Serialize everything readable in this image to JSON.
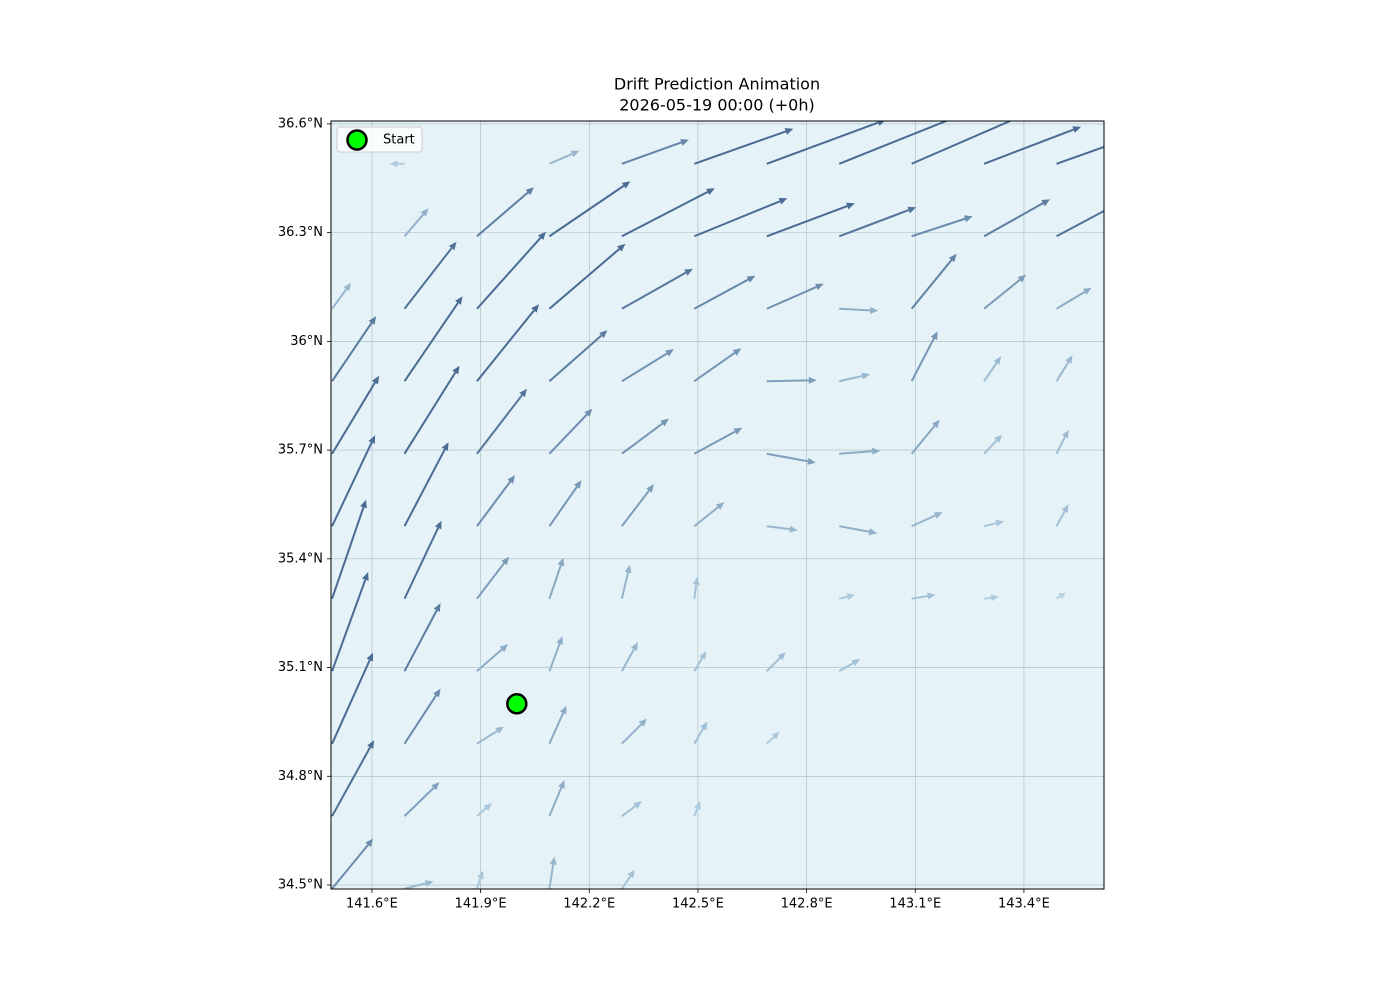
{
  "chart_data": {
    "type": "quiver",
    "title": "Drift Prediction Animation",
    "subtitle": "2026-05-19 00:00 (+0h)",
    "x": [
      141.49,
      141.69,
      141.89,
      142.09,
      142.29,
      142.49,
      142.69,
      142.89,
      143.09,
      143.29,
      143.49
    ],
    "y": [
      34.49,
      34.69,
      34.89,
      35.09,
      35.29,
      35.49,
      35.69,
      35.89,
      36.09,
      36.29,
      36.49
    ],
    "u": [
      [
        0.41,
        0.29,
        0.06,
        0.05,
        0.13,
        0,
        0,
        0,
        0,
        0,
        0
      ],
      [
        0.42,
        0.35,
        0.15,
        0.15,
        0.2,
        0.06,
        0,
        0,
        0,
        0,
        0
      ],
      [
        0.41,
        0.36,
        0.27,
        0.17,
        0.25,
        0.13,
        0.13,
        0,
        0,
        0,
        0
      ],
      [
        0.36,
        0.36,
        0.31,
        0.13,
        0.16,
        0.12,
        0.19,
        0.21,
        0,
        0,
        0
      ],
      [
        0.34,
        0.37,
        0.32,
        0.14,
        0.08,
        0.03,
        0,
        0.16,
        0.24,
        0.15,
        0.09
      ],
      [
        0.43,
        0.44,
        0.38,
        0.32,
        0.32,
        0.3,
        0.31,
        0.38,
        0.31,
        0.2,
        0.12
      ],
      [
        0.47,
        0.55,
        0.5,
        0.43,
        0.47,
        0.48,
        0.49,
        0.41,
        0.28,
        0.18,
        0.12
      ],
      [
        0.44,
        0.58,
        0.62,
        0.58,
        0.52,
        0.47,
        0.5,
        0.31,
        0.26,
        0.17,
        0.16
      ],
      [
        0.19,
        0.52,
        0.69,
        0.76,
        0.71,
        0.61,
        0.57,
        0.39,
        0.45,
        0.42,
        0.35
      ],
      [
        0,
        0.24,
        0.57,
        0.81,
        0.93,
        0.93,
        0.88,
        0.77,
        0.61,
        0.66,
        0.75
      ],
      [
        0,
        -0.15,
        0,
        0.3,
        0.67,
        0.99,
        1.19,
        1.2,
        1.15,
        0.97,
        0.9
      ]
    ],
    "v": [
      [
        0.5,
        0.07,
        0.18,
        0.32,
        0.19,
        0,
        0,
        0,
        0,
        0,
        0
      ],
      [
        0.76,
        0.34,
        0.13,
        0.36,
        0.15,
        0.15,
        0,
        0,
        0,
        0,
        0
      ],
      [
        0.91,
        0.55,
        0.17,
        0.38,
        0.25,
        0.22,
        0.12,
        0,
        0,
        0,
        0
      ],
      [
        0.99,
        0.68,
        0.27,
        0.35,
        0.29,
        0.2,
        0.19,
        0.12,
        0,
        0,
        0
      ],
      [
        0.99,
        0.78,
        0.42,
        0.41,
        0.34,
        0.22,
        0,
        0.04,
        0.04,
        0.02,
        0.06
      ],
      [
        0.91,
        0.84,
        0.51,
        0.46,
        0.42,
        0.24,
        -0.04,
        -0.07,
        0.14,
        0.05,
        0.22
      ],
      [
        0.78,
        0.88,
        0.65,
        0.45,
        0.35,
        0.26,
        -0.09,
        0.03,
        0.34,
        0.19,
        0.24
      ],
      [
        0.65,
        0.85,
        0.77,
        0.51,
        0.32,
        0.33,
        0.01,
        0.07,
        0.5,
        0.25,
        0.26
      ],
      [
        0.26,
        0.67,
        0.77,
        0.65,
        0.4,
        0.33,
        0.25,
        -0.02,
        0.55,
        0.34,
        0.21
      ],
      [
        0,
        0.28,
        0.49,
        0.55,
        0.48,
        0.38,
        0.33,
        0.29,
        0.2,
        0.37,
        0.4
      ],
      [
        0,
        0,
        0,
        0.13,
        0.24,
        0.35,
        0.44,
        0.48,
        0.5,
        0.37,
        0.32
      ]
    ],
    "arrow_colors": [
      "#c4e0ee",
      "#4a6b93"
    ],
    "background": "#e5f2f7",
    "markers": [
      {
        "name": "Start",
        "x": 142.0,
        "y": 35.0,
        "color": "#00ff00"
      }
    ],
    "legend": "upper left",
    "grid": true,
    "xlim": [
      141.487,
      143.621
    ],
    "ylim": [
      34.489,
      36.608
    ],
    "xticks": [
      {
        "value": 141.6,
        "label": "141.6°E"
      },
      {
        "value": 141.9,
        "label": "141.9°E"
      },
      {
        "value": 142.2,
        "label": "142.2°E"
      },
      {
        "value": 142.5,
        "label": "142.5°E"
      },
      {
        "value": 142.8,
        "label": "142.8°E"
      },
      {
        "value": 143.1,
        "label": "143.1°E"
      },
      {
        "value": 143.4,
        "label": "143.4°E"
      }
    ],
    "yticks": [
      {
        "value": 34.5,
        "label": "34.5°N"
      },
      {
        "value": 34.8,
        "label": "34.8°N"
      },
      {
        "value": 35.1,
        "label": "35.1°N"
      },
      {
        "value": 35.4,
        "label": "35.4°N"
      },
      {
        "value": 35.7,
        "label": "35.7°N"
      },
      {
        "value": 36.0,
        "label": "36°N"
      },
      {
        "value": 36.3,
        "label": "36.3°N"
      },
      {
        "value": 36.6,
        "label": "36.6°N"
      }
    ]
  }
}
